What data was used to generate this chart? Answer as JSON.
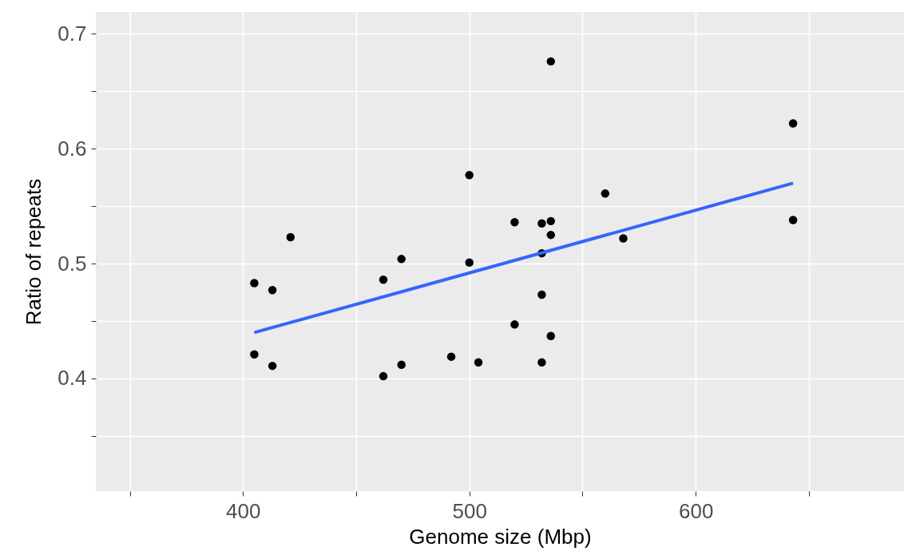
{
  "chart_data": {
    "type": "scatter",
    "xlabel": "Genome size (Mbp)",
    "ylabel": "Ratio of repeats",
    "xlim": [
      335,
      692
    ],
    "ylim": [
      0.302,
      0.719
    ],
    "xticks": [
      {
        "value": 350,
        "label": null
      },
      400,
      {
        "value": 450,
        "label": null
      },
      500,
      {
        "value": 550,
        "label": null
      },
      600,
      {
        "value": 650,
        "label": null
      }
    ],
    "yticks": [
      {
        "value": 0.35,
        "label": null
      },
      0.4,
      {
        "value": 0.45,
        "label": null
      },
      0.5,
      {
        "value": 0.55,
        "label": null
      },
      0.6,
      {
        "value": 0.65,
        "label": null
      },
      0.7
    ],
    "grid": true,
    "series": [
      {
        "marker": "circle",
        "color": "#000000",
        "x": [
          405,
          405,
          413,
          413,
          421,
          462,
          462,
          470,
          470,
          492,
          500,
          500,
          504,
          520,
          520,
          532,
          532,
          532,
          532,
          536,
          536,
          536,
          536,
          560,
          568,
          643,
          643
        ],
        "values": [
          0.483,
          0.421,
          0.477,
          0.411,
          0.523,
          0.486,
          0.402,
          0.504,
          0.412,
          0.419,
          0.577,
          0.501,
          0.414,
          0.536,
          0.447,
          0.535,
          0.509,
          0.473,
          0.414,
          0.676,
          0.537,
          0.525,
          0.437,
          0.561,
          0.522,
          0.622,
          0.538
        ]
      },
      {
        "type": "line",
        "color": "#3366ff",
        "x": [
          405,
          643
        ],
        "values": [
          0.44,
          0.57
        ]
      }
    ]
  }
}
